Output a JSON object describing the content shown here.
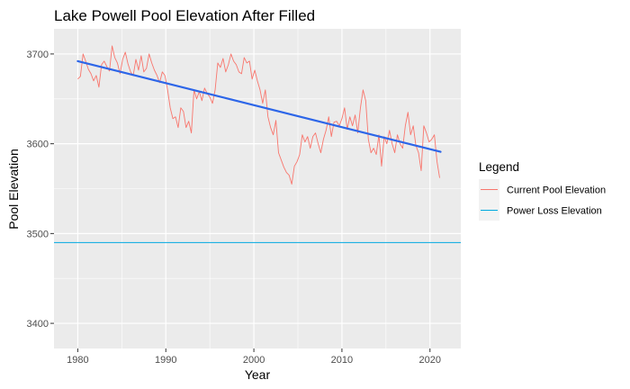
{
  "chart_data": {
    "type": "line",
    "title": "Lake Powell Pool Elevation After Filled",
    "xlabel": "Year",
    "ylabel": "Pool Elevation",
    "xlim": [
      1977.3,
      2023.5
    ],
    "ylim": [
      3372,
      3728
    ],
    "x_ticks": [
      1980,
      1990,
      2000,
      2010,
      2020
    ],
    "y_ticks": [
      3400,
      3500,
      3600,
      3700
    ],
    "grid": true,
    "legend": {
      "title": "Legend",
      "placement": "right",
      "entries": [
        {
          "label": "Current Pool Elevation",
          "color": "#F8766D"
        },
        {
          "label": "Power Loss Elevation",
          "color": "#00A9E0"
        }
      ]
    },
    "series": [
      {
        "name": "Current Pool Elevation",
        "color": "#F8766D",
        "x": [
          1980.0,
          1980.3,
          1980.6,
          1980.9,
          1981.2,
          1981.5,
          1981.8,
          1982.1,
          1982.4,
          1982.7,
          1983.0,
          1983.3,
          1983.6,
          1983.9,
          1984.2,
          1984.5,
          1984.8,
          1985.1,
          1985.4,
          1985.7,
          1986.0,
          1986.3,
          1986.6,
          1986.9,
          1987.2,
          1987.5,
          1987.8,
          1988.1,
          1988.4,
          1988.7,
          1989.0,
          1989.3,
          1989.6,
          1989.9,
          1990.2,
          1990.5,
          1990.8,
          1991.1,
          1991.4,
          1991.7,
          1992.0,
          1992.3,
          1992.6,
          1992.9,
          1993.2,
          1993.5,
          1993.8,
          1994.1,
          1994.4,
          1994.7,
          1995.0,
          1995.3,
          1995.6,
          1995.9,
          1996.2,
          1996.5,
          1996.8,
          1997.1,
          1997.4,
          1997.7,
          1998.0,
          1998.3,
          1998.6,
          1998.9,
          1999.2,
          1999.5,
          1999.8,
          2000.1,
          2000.4,
          2000.7,
          2001.0,
          2001.3,
          2001.6,
          2001.9,
          2002.2,
          2002.5,
          2002.8,
          2003.1,
          2003.4,
          2003.7,
          2004.0,
          2004.3,
          2004.6,
          2004.9,
          2005.2,
          2005.5,
          2005.8,
          2006.1,
          2006.4,
          2006.7,
          2007.0,
          2007.3,
          2007.6,
          2007.9,
          2008.2,
          2008.5,
          2008.8,
          2009.1,
          2009.4,
          2009.7,
          2010.0,
          2010.3,
          2010.6,
          2010.9,
          2011.2,
          2011.5,
          2011.8,
          2012.1,
          2012.4,
          2012.7,
          2013.0,
          2013.3,
          2013.6,
          2013.9,
          2014.2,
          2014.5,
          2014.8,
          2015.1,
          2015.4,
          2015.7,
          2016.0,
          2016.3,
          2016.6,
          2016.9,
          2017.2,
          2017.5,
          2017.8,
          2018.1,
          2018.4,
          2018.7,
          2019.0,
          2019.3,
          2019.6,
          2019.9,
          2020.2,
          2020.5,
          2020.8,
          2021.1
        ],
        "y": [
          3672,
          3675,
          3700,
          3692,
          3683,
          3678,
          3670,
          3676,
          3663,
          3688,
          3692,
          3686,
          3681,
          3709,
          3696,
          3690,
          3678,
          3694,
          3702,
          3689,
          3680,
          3676,
          3694,
          3682,
          3698,
          3680,
          3684,
          3700,
          3690,
          3682,
          3676,
          3668,
          3680,
          3676,
          3660,
          3640,
          3628,
          3630,
          3618,
          3640,
          3636,
          3618,
          3625,
          3612,
          3660,
          3650,
          3658,
          3648,
          3662,
          3656,
          3652,
          3645,
          3660,
          3690,
          3685,
          3695,
          3680,
          3688,
          3700,
          3692,
          3688,
          3680,
          3678,
          3696,
          3690,
          3692,
          3672,
          3682,
          3670,
          3660,
          3645,
          3660,
          3630,
          3618,
          3610,
          3626,
          3590,
          3582,
          3574,
          3568,
          3565,
          3555,
          3575,
          3580,
          3588,
          3610,
          3602,
          3608,
          3595,
          3608,
          3612,
          3600,
          3590,
          3605,
          3615,
          3630,
          3608,
          3624,
          3625,
          3620,
          3628,
          3640,
          3616,
          3630,
          3620,
          3632,
          3612,
          3640,
          3660,
          3648,
          3605,
          3590,
          3595,
          3588,
          3610,
          3575,
          3608,
          3600,
          3615,
          3600,
          3590,
          3610,
          3600,
          3595,
          3620,
          3635,
          3610,
          3620,
          3598,
          3590,
          3570,
          3620,
          3612,
          3602,
          3605,
          3610,
          3580,
          3562
        ]
      },
      {
        "name": "Power Loss Elevation",
        "color": "#00A9E0",
        "y": 3490
      }
    ],
    "trend_line": {
      "color": "#2D66E8",
      "x": [
        1980,
        2021.2
      ],
      "y": [
        3692,
        3591
      ]
    }
  }
}
